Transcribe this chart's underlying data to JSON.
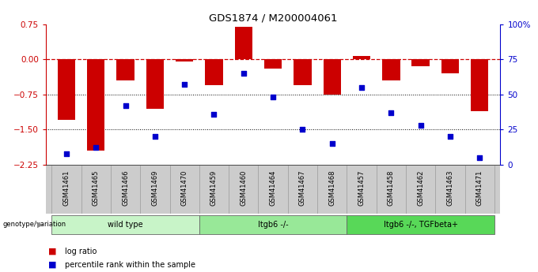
{
  "title": "GDS1874 / M200004061",
  "samples": [
    "GSM41461",
    "GSM41465",
    "GSM41466",
    "GSM41469",
    "GSM41470",
    "GSM41459",
    "GSM41460",
    "GSM41464",
    "GSM41467",
    "GSM41468",
    "GSM41457",
    "GSM41458",
    "GSM41462",
    "GSM41463",
    "GSM41471"
  ],
  "log_ratio": [
    -1.3,
    -1.95,
    -0.45,
    -1.05,
    -0.05,
    -0.55,
    0.7,
    -0.2,
    -0.55,
    -0.75,
    0.08,
    -0.45,
    -0.15,
    -0.3,
    -1.1
  ],
  "percentile_rank": [
    8,
    12,
    42,
    20,
    57,
    36,
    65,
    48,
    25,
    15,
    55,
    37,
    28,
    20,
    5
  ],
  "groups": [
    {
      "label": "wild type",
      "start": 0,
      "end": 5,
      "color": "#c8f4c8"
    },
    {
      "label": "Itgb6 -/-",
      "start": 5,
      "end": 10,
      "color": "#98e898"
    },
    {
      "label": "Itgb6 -/-, TGFbeta+",
      "start": 10,
      "end": 15,
      "color": "#58d858"
    }
  ],
  "bar_color": "#cc0000",
  "dot_color": "#0000cc",
  "left_ylim": [
    -2.25,
    0.75
  ],
  "right_ylim": [
    0,
    100
  ],
  "left_yticks": [
    0.75,
    0,
    -0.75,
    -1.5,
    -2.25
  ],
  "right_yticks": [
    100,
    75,
    50,
    25,
    0
  ],
  "hline_y": 0,
  "dotted_lines": [
    -0.75,
    -1.5
  ],
  "background_color": "#ffffff",
  "label_bg_color": "#cccccc",
  "bar_width": 0.6
}
